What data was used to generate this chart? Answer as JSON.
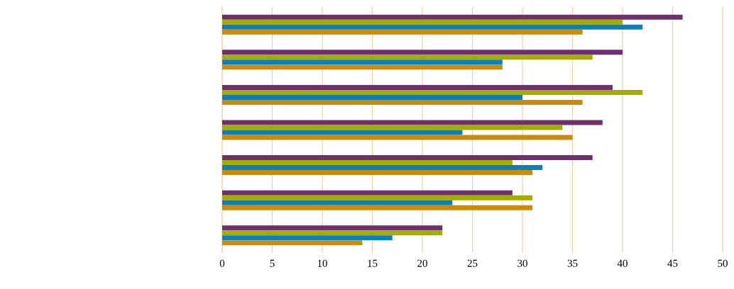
{
  "chart_data": {
    "type": "bar",
    "orientation": "horizontal",
    "categories": [
      null,
      null,
      null,
      null,
      null,
      null,
      null
    ],
    "series": [
      {
        "color": "#6e2f6e",
        "values": [
          46,
          40,
          39,
          38,
          37,
          29,
          22
        ]
      },
      {
        "color": "#a3ad00",
        "values": [
          40,
          37,
          42,
          34,
          29,
          31,
          22
        ]
      },
      {
        "color": "#0a7fb8",
        "values": [
          42,
          28,
          30,
          24,
          32,
          23,
          17
        ]
      },
      {
        "color": "#c98a0e",
        "values": [
          36,
          28,
          36,
          35,
          31,
          31,
          14
        ]
      }
    ],
    "xlim": [
      0,
      50
    ],
    "xticks": [
      0,
      5,
      10,
      15,
      20,
      25,
      30,
      35,
      40,
      45,
      50
    ],
    "grid": "x"
  }
}
